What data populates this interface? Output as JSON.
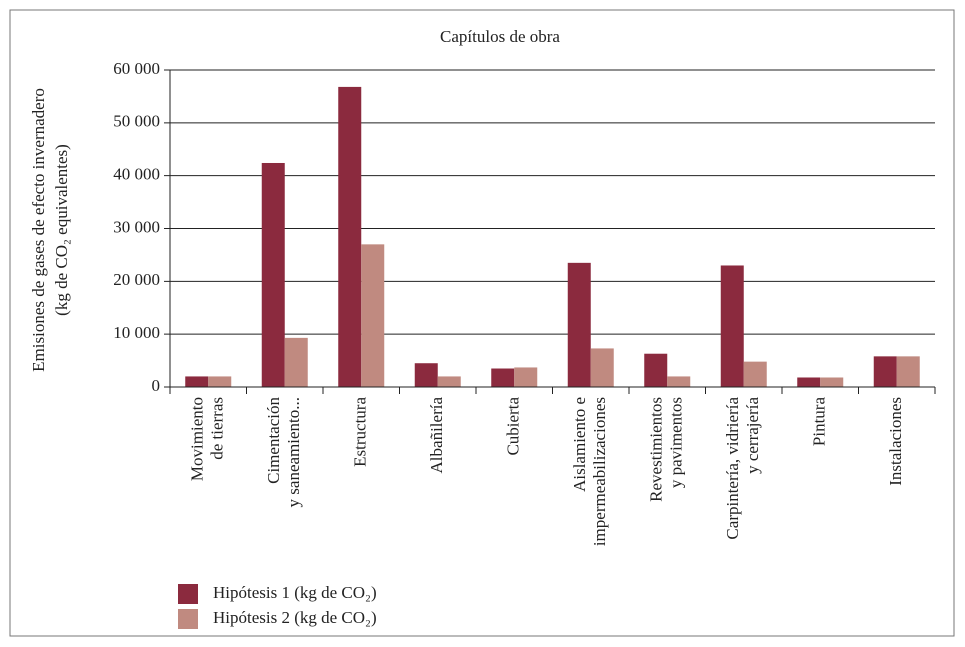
{
  "chart_data": {
    "type": "bar",
    "title": "Capítulos de obra",
    "y_label": [
      "Emisiones de gases de efecto invernadero",
      "(kg de CO₂ equivalentes)"
    ],
    "categories": [
      "Movimiento\nde tierras",
      "Cimentación\ny saneamiento...",
      "Estructura",
      "Albañilería",
      "Cubierta",
      "Aislamiento e\nimpermeabilizaciones",
      "Revestimientos\ny pavimentos",
      "Carpintería, vidriería\ny cerrajería",
      "Pintura",
      "Instalaciones"
    ],
    "series": [
      {
        "name": "Hipótesis 1 (kg de CO₂)",
        "color": "#8b2a3e",
        "values": [
          2000,
          42400,
          56800,
          4500,
          3500,
          23500,
          6300,
          23000,
          1800,
          5800
        ]
      },
      {
        "name": "Hipótesis 2 (kg de CO₂)",
        "color": "#c08a80",
        "values": [
          2000,
          9300,
          27000,
          2000,
          3700,
          7300,
          2000,
          4800,
          1800,
          5800
        ]
      }
    ],
    "ylim": [
      0,
      60000
    ],
    "yticks": [
      {
        "value": 0,
        "label": "0"
      },
      {
        "value": 10000,
        "label": "10 000"
      },
      {
        "value": 20000,
        "label": "20 000"
      },
      {
        "value": 30000,
        "label": "30 000"
      },
      {
        "value": 40000,
        "label": "40 000"
      },
      {
        "value": 50000,
        "label": "50 000"
      },
      {
        "value": 60000,
        "label": "60 000"
      }
    ],
    "grid": true,
    "legend": "bottom-left"
  }
}
